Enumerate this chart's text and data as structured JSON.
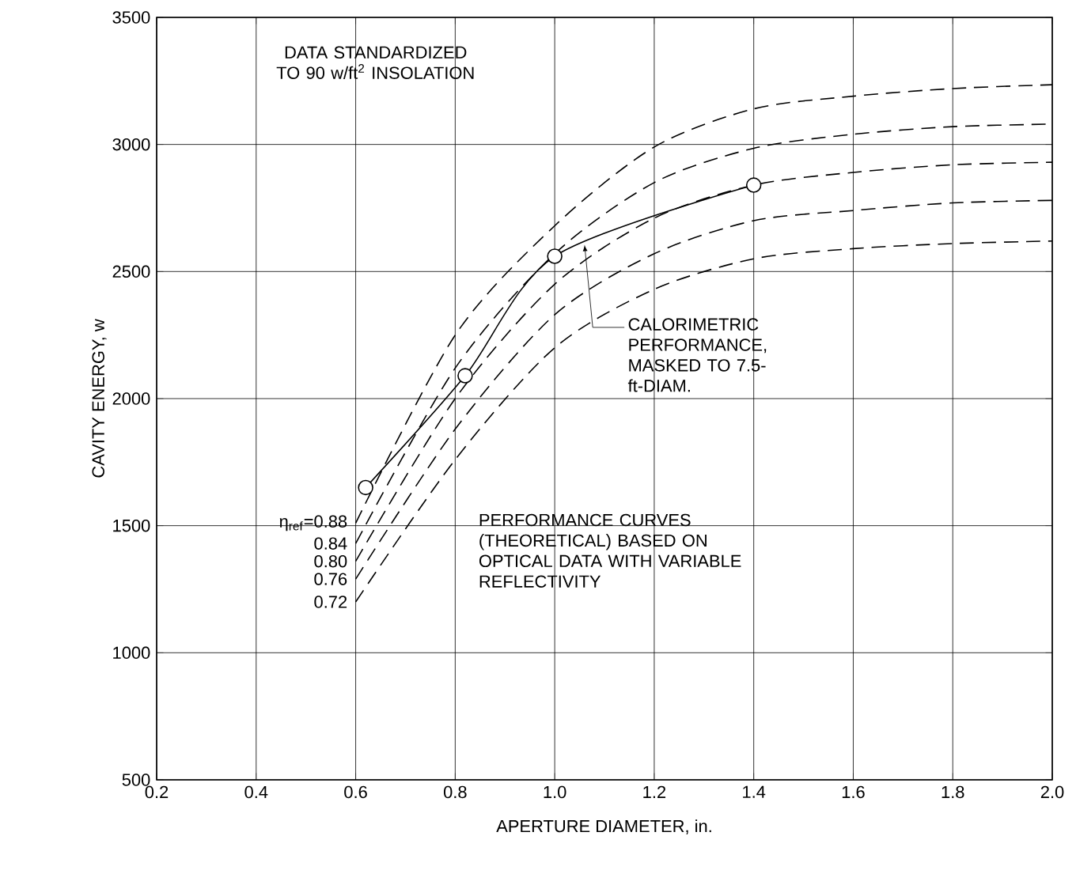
{
  "chart_data": {
    "type": "line",
    "xlabel": "APERTURE DIAMETER, in.",
    "ylabel": "CAVITY ENERGY, w",
    "x": [
      0.6,
      0.8,
      1.0,
      1.2,
      1.4,
      1.6,
      1.8,
      2.0
    ],
    "xlim": [
      0.2,
      2.0
    ],
    "ylim": [
      500,
      3500
    ],
    "xticks": [
      0.2,
      0.4,
      0.6,
      0.8,
      {
        "value": 1.0,
        "label": "1.0"
      },
      1.2,
      1.4,
      1.6,
      1.8,
      {
        "value": 2.0,
        "label": "2.0"
      }
    ],
    "yticks": [
      500,
      1000,
      1500,
      2000,
      2500,
      3000,
      3500
    ],
    "grid": true,
    "line_style": "dashed",
    "marker": "none",
    "series": [
      {
        "name": "η$_{ref}$=0.88",
        "color": "#000000",
        "values": [
          1510,
          2250,
          2680,
          2990,
          3140,
          3190,
          3220,
          3235
        ]
      },
      {
        "name": "0.84",
        "color": "#000000",
        "values": [
          1430,
          2120,
          2570,
          2850,
          2985,
          3040,
          3070,
          3080
        ]
      },
      {
        "name": "0.80",
        "color": "#000000",
        "values": [
          1360,
          2000,
          2450,
          2710,
          2840,
          2890,
          2920,
          2930
        ]
      },
      {
        "name": "0.76",
        "color": "#000000",
        "values": [
          1290,
          1880,
          2330,
          2570,
          2700,
          2740,
          2770,
          2780
        ]
      },
      {
        "name": "0.72",
        "color": "#000000",
        "values": [
          1200,
          1760,
          2200,
          2430,
          2550,
          2590,
          2610,
          2620
        ]
      },
      {
        "color": "#000000",
        "x": [
          0.62,
          0.82,
          1.0,
          1.4
        ],
        "values": [
          1650,
          2090,
          2560,
          2840
        ],
        "line_style": "solid",
        "marker": "circle"
      }
    ],
    "annotations": [
      "DATA STANDARDIZED TO 90 w/ft$^{2}$ INSOLATION",
      {
        "text": "CALORIMETRIC PERFORMANCE, MASKED TO 7.5-ft-DIAM.",
        "x": 1.06,
        "y": 2605
      },
      "PERFORMANCE CURVES (THEORETICAL) BASED ON OPTICAL DATA WITH VARIABLE REFLECTIVITY"
    ]
  }
}
